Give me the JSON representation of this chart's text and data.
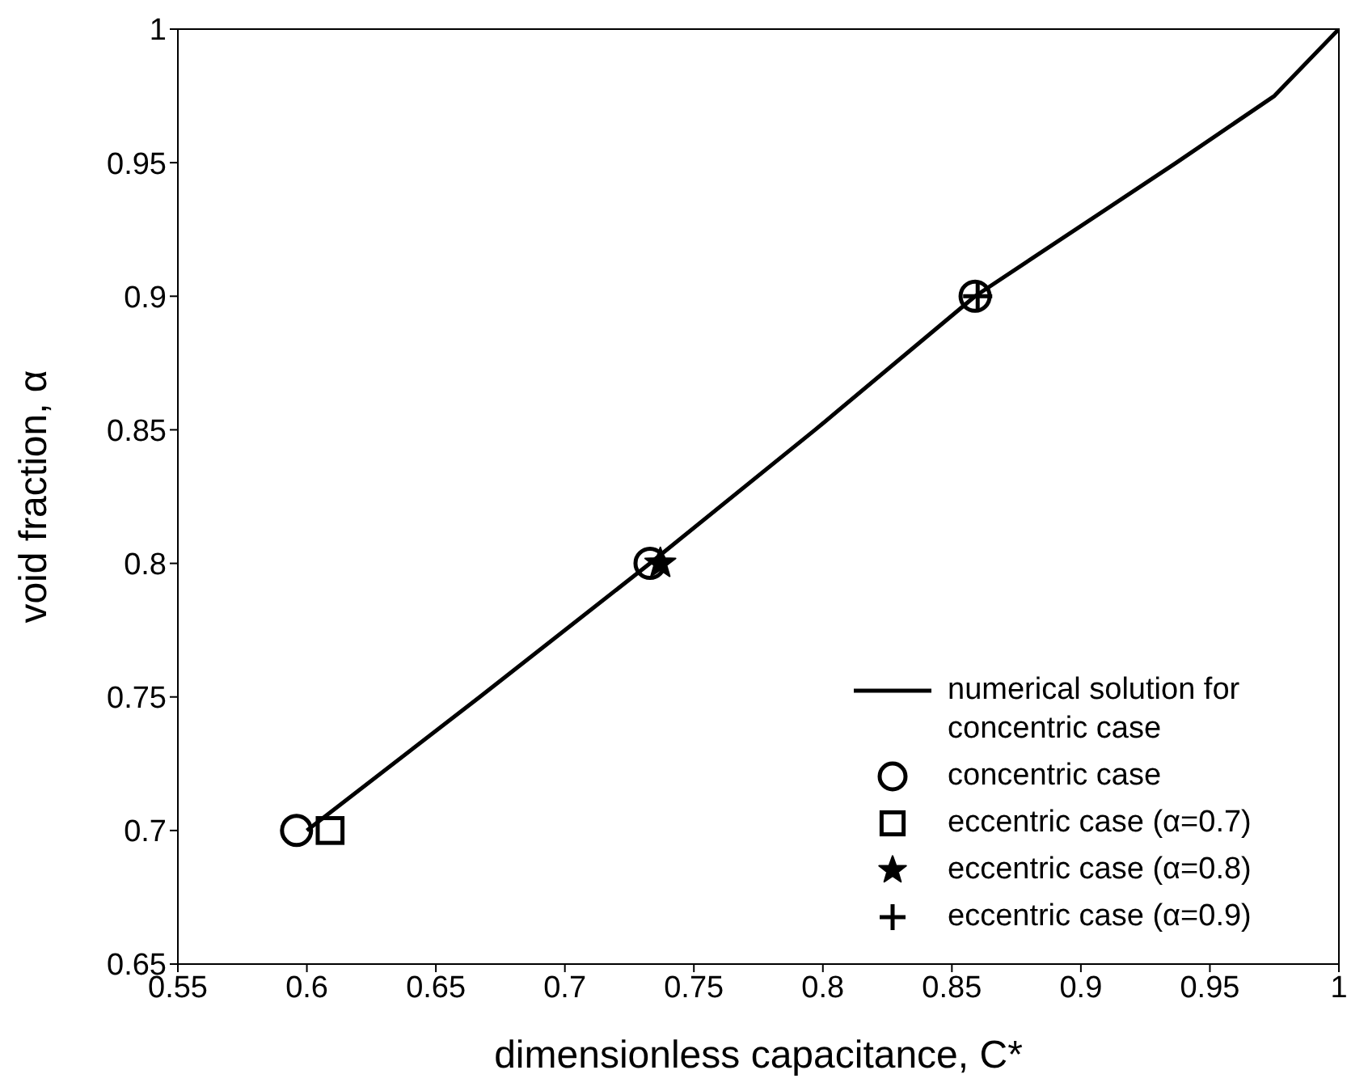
{
  "chart_data": {
    "type": "scatter",
    "xlabel": "dimensionless capacitance, C*",
    "ylabel": "void fraction, α",
    "xlim": [
      0.55,
      1
    ],
    "xticks": [
      0.55,
      0.6,
      0.65,
      0.7,
      0.75,
      0.8,
      0.85,
      0.9,
      0.95,
      1
    ],
    "ylim": [
      0.65,
      1
    ],
    "yticks": [
      0.65,
      0.7,
      0.75,
      0.8,
      0.85,
      0.9,
      0.95,
      1
    ],
    "grid": false,
    "legend": "bottom right",
    "series": [
      {
        "name": "numerical solution for concentric case",
        "type": "line",
        "color": "#000000",
        "marker": "none",
        "line_style": "solid",
        "x": [
          0.6,
          0.667,
          0.733,
          0.797,
          0.859,
          0.937,
          0.975,
          1
        ],
        "values": [
          0.7,
          0.75,
          0.8,
          0.85,
          0.9,
          0.95,
          0.975,
          1
        ]
      },
      {
        "name": "concentric case",
        "color": "#000000",
        "marker": "circle",
        "x": [
          0.596,
          0.733,
          0.859
        ],
        "values": [
          0.7,
          0.8,
          0.9
        ]
      },
      {
        "name": "eccentric case (α=0.7)",
        "color": "#000000",
        "marker": "square",
        "x": [
          0.609
        ],
        "values": [
          0.7
        ]
      },
      {
        "name": "eccentric case (α=0.8)",
        "color": "#000000",
        "marker": "star",
        "x": [
          0.737
        ],
        "values": [
          0.8
        ]
      },
      {
        "name": "eccentric case (α=0.9)",
        "color": "#000000",
        "marker": "cross",
        "x": [
          0.86
        ],
        "values": [
          0.9
        ]
      }
    ]
  }
}
